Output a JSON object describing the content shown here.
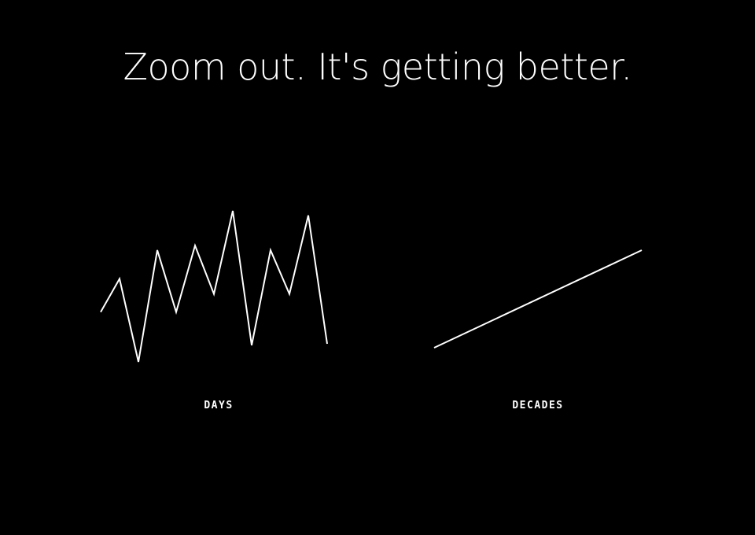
{
  "headline": "Zoom out. It's getting better.",
  "chart_data": [
    {
      "type": "line",
      "xlabel": "DAYS",
      "series": [
        {
          "x": [
            0,
            1,
            2,
            3,
            4,
            5,
            6,
            7,
            8,
            9,
            10,
            11,
            12
          ],
          "values": [
            0.33,
            0.55,
            0.0,
            0.74,
            0.33,
            0.77,
            0.45,
            1.0,
            0.11,
            0.74,
            0.45,
            0.97,
            0.12
          ]
        }
      ],
      "ylim": [
        0,
        1
      ],
      "color": "#ffffff"
    },
    {
      "type": "line",
      "xlabel": "DECADES",
      "series": [
        {
          "x": [
            0,
            1
          ],
          "values": [
            0.0,
            1.0
          ]
        }
      ],
      "ylim": [
        0,
        1
      ],
      "color": "#ffffff"
    }
  ]
}
